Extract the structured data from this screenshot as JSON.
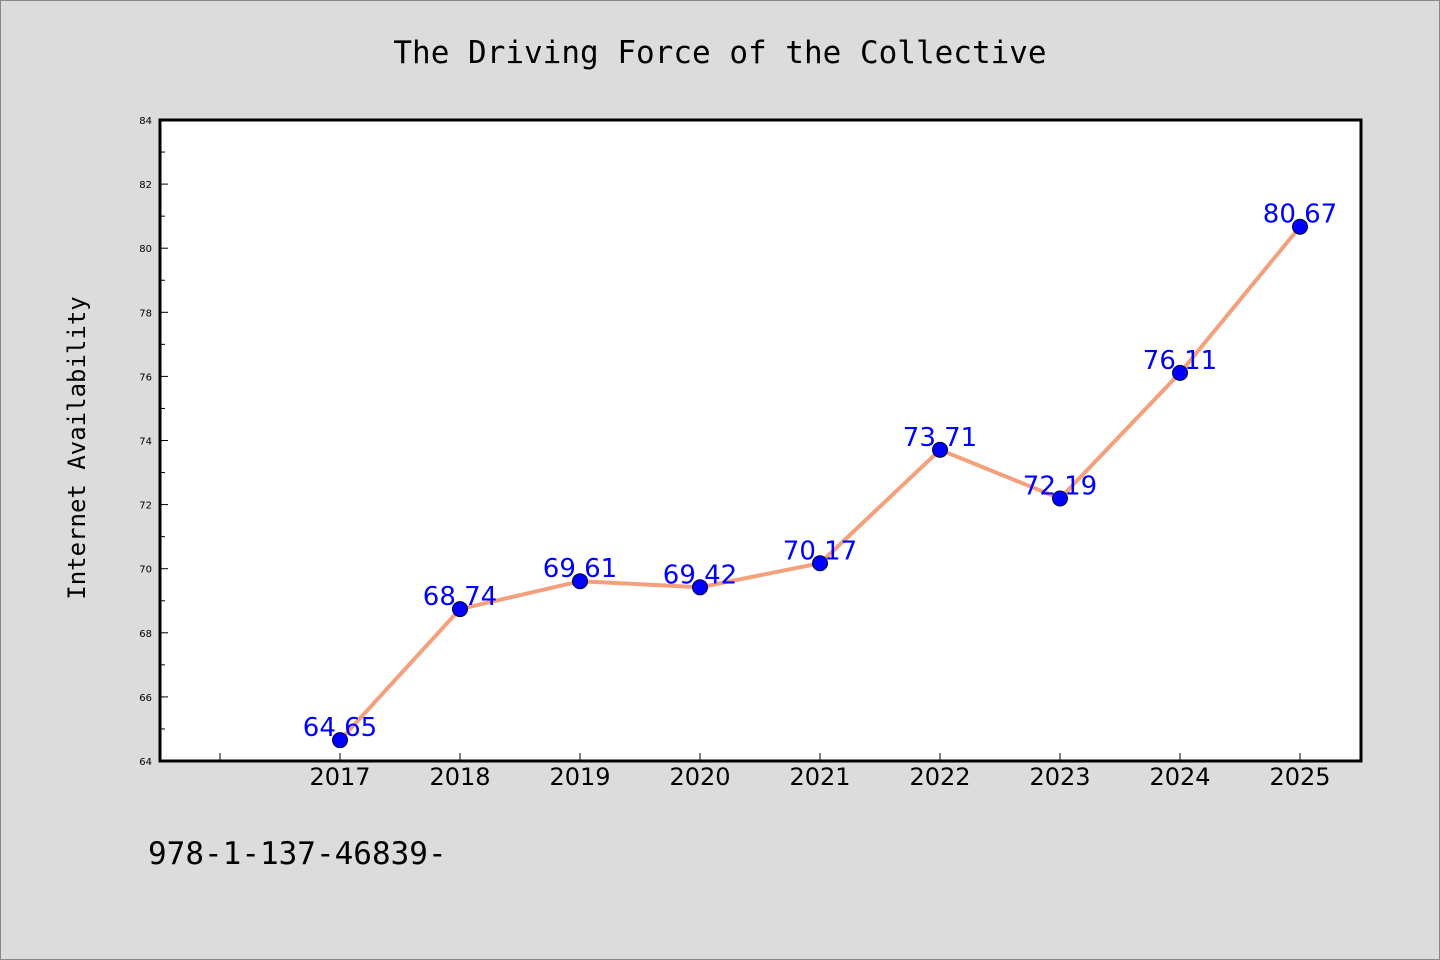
{
  "chart_data": {
    "type": "line",
    "title": "The Driving Force of the Collective",
    "xlabel": "",
    "ylabel": "Internet Availability",
    "categories": [
      "2017",
      "2018",
      "2019",
      "2020",
      "2021",
      "2022",
      "2023",
      "2024",
      "2025"
    ],
    "series": [
      {
        "values": [
          64.65,
          68.74,
          69.61,
          69.42,
          70.17,
          73.71,
          72.19,
          76.11,
          80.67
        ],
        "line_color": "#f4a07c",
        "marker_color": "#0000ff"
      }
    ],
    "data_labels": [
      "64.65",
      "68.74",
      "69.61",
      "69.42",
      "70.17",
      "73.71",
      "72.19",
      "76.11",
      "80.67"
    ],
    "data_label_color": "#0000ff",
    "ylim": [
      64,
      84
    ],
    "yticks": [
      "64",
      "66",
      "68",
      "70",
      "72",
      "74",
      "76",
      "78",
      "80",
      "82",
      "84"
    ],
    "grid": false,
    "plot_background": "#ffffff",
    "figure_background": "#dcdcdc"
  },
  "footer": {
    "text": "978-1-137-46839-"
  }
}
